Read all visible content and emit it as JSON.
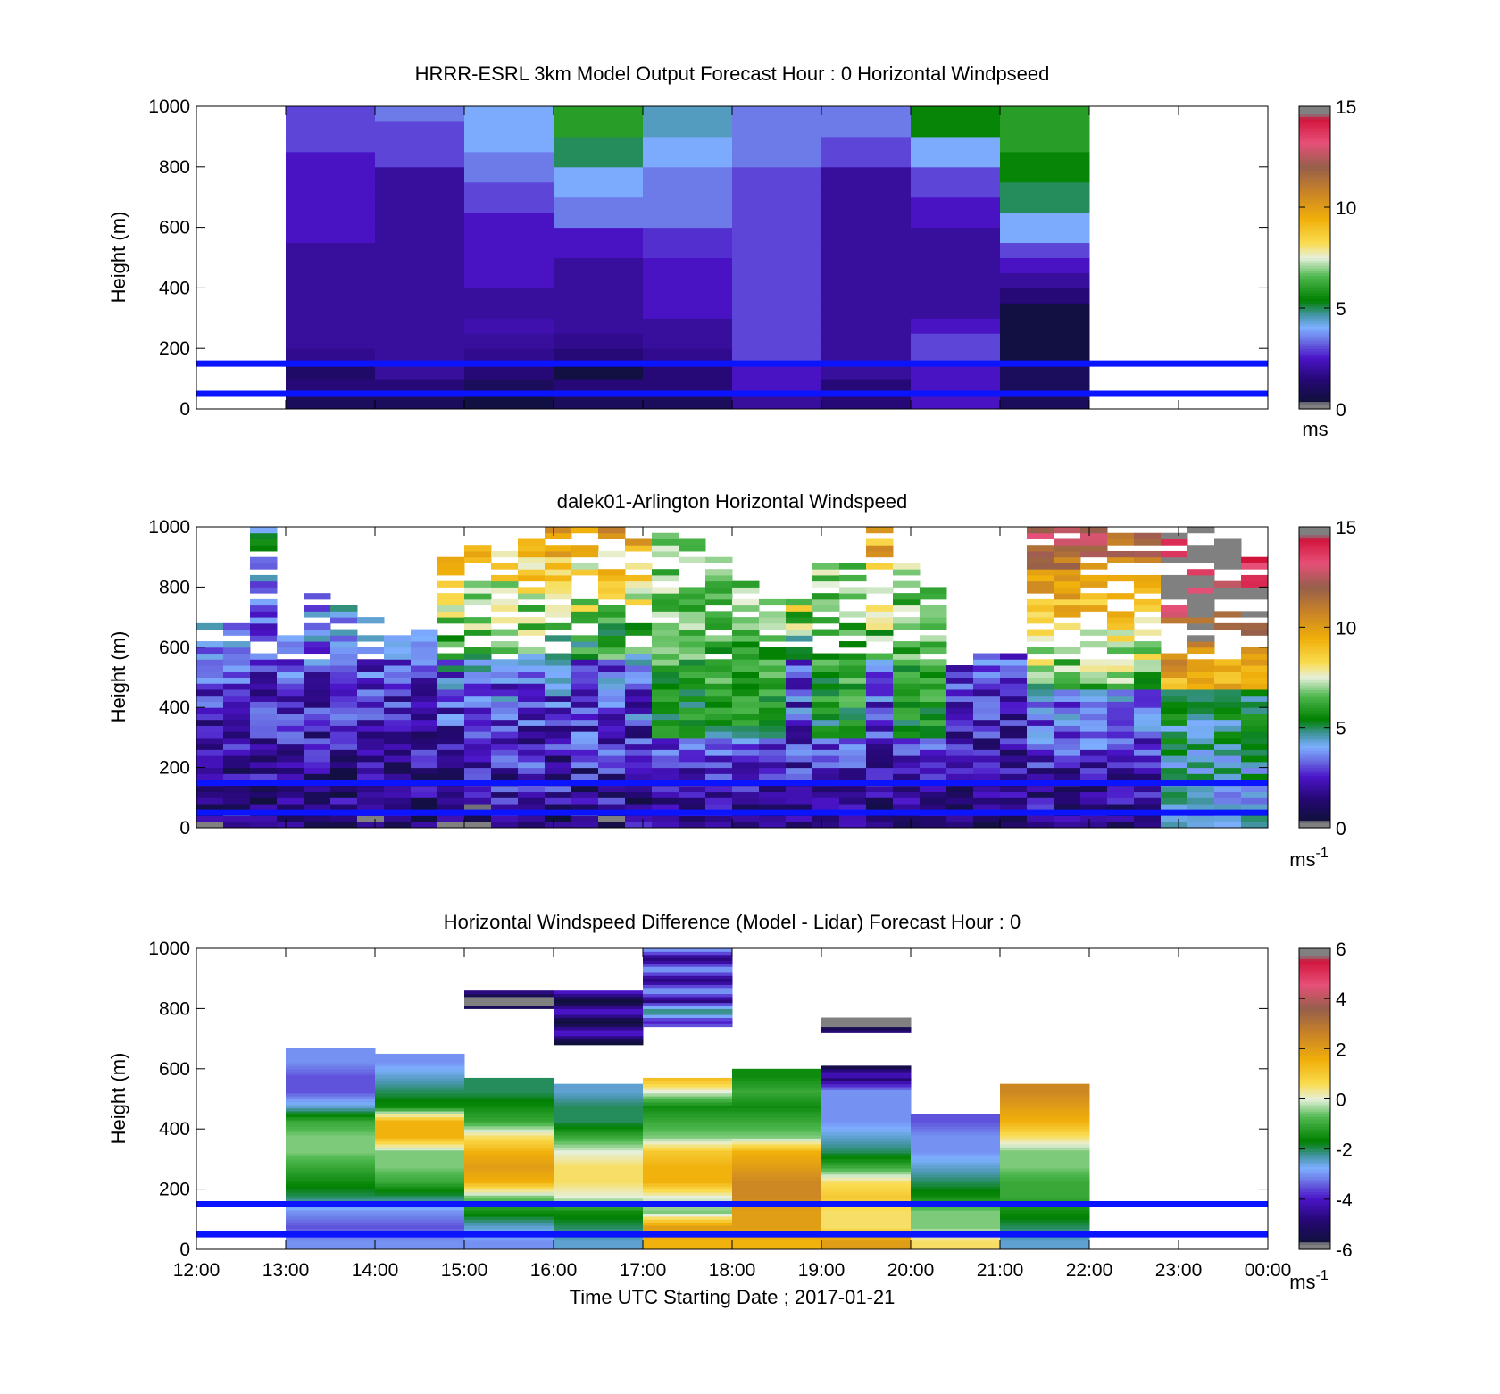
{
  "figure": {
    "xlabel": "Time UTC  Starting Date ; 2017-01-21"
  },
  "x_ticks": [
    "12:00",
    "13:00",
    "14:00",
    "15:00",
    "16:00",
    "17:00",
    "18:00",
    "19:00",
    "20:00",
    "21:00",
    "22:00",
    "23:00",
    "00:00"
  ],
  "reference_lines_m": [
    150,
    50
  ],
  "chart_data": [
    {
      "type": "heatmap",
      "title": "HRRR-ESRL 3km Model Output   Forecast Hour : 0 Horizontal Windpseed",
      "ylabel": "Height (m)",
      "yticks": [
        "0",
        "200",
        "400",
        "600",
        "800",
        "1000"
      ],
      "ylim": [
        0,
        1000
      ],
      "x_range_hours": [
        12,
        24
      ],
      "colorbar": {
        "min": 0,
        "max": 15,
        "ticks": [
          "0",
          "5",
          "10",
          "15"
        ],
        "unit": "ms"
      },
      "columns_hours": [
        13,
        14,
        15,
        16,
        17,
        18,
        19,
        20,
        21
      ],
      "levels_m": [
        25,
        75,
        125,
        175,
        225,
        275,
        325,
        375,
        425,
        475,
        525,
        575,
        625,
        675,
        725,
        775,
        825,
        875,
        925,
        975
      ],
      "speed_ms": [
        [
          1.0,
          1.5,
          1.2,
          1.8,
          2.0,
          2.0,
          2.0,
          2.0,
          2.0,
          2.0,
          2.0,
          2.5,
          2.5,
          2.5,
          2.5,
          2.5,
          2.5,
          3.0,
          3.0,
          3.0
        ],
        [
          1.0,
          1.5,
          2.0,
          2.0,
          2.0,
          2.0,
          2.0,
          2.0,
          2.0,
          2.0,
          2.0,
          2.0,
          2.0,
          2.0,
          2.0,
          2.0,
          3.0,
          3.0,
          3.0,
          3.5
        ],
        [
          0.5,
          1.0,
          1.5,
          1.8,
          2.0,
          2.2,
          2.0,
          2.0,
          2.5,
          2.5,
          2.5,
          2.5,
          2.5,
          3.0,
          3.0,
          3.5,
          3.5,
          4.0,
          4.0,
          4.0
        ],
        [
          1.0,
          1.5,
          0.5,
          1.5,
          1.8,
          2.0,
          2.0,
          2.0,
          2.0,
          2.0,
          2.5,
          2.5,
          3.5,
          3.5,
          4.0,
          4.0,
          5.0,
          5.0,
          6.0,
          6.0
        ],
        [
          1.0,
          1.5,
          1.5,
          1.8,
          2.0,
          2.0,
          2.5,
          2.5,
          2.5,
          2.5,
          2.8,
          2.8,
          3.5,
          3.5,
          3.5,
          3.5,
          4.0,
          4.0,
          4.5,
          4.5
        ],
        [
          2.0,
          2.5,
          2.5,
          3.0,
          3.0,
          3.0,
          3.0,
          3.0,
          3.0,
          3.0,
          3.0,
          3.0,
          3.0,
          3.0,
          3.0,
          3.0,
          3.5,
          3.5,
          3.5,
          3.5
        ],
        [
          1.5,
          1.5,
          2.0,
          2.0,
          2.0,
          2.0,
          2.0,
          2.0,
          2.0,
          2.0,
          2.0,
          2.0,
          2.0,
          2.0,
          2.0,
          2.0,
          3.0,
          3.0,
          3.5,
          3.5
        ],
        [
          2.5,
          2.5,
          2.5,
          3.0,
          3.0,
          2.5,
          2.0,
          2.0,
          2.0,
          2.0,
          2.0,
          2.0,
          2.5,
          2.5,
          3.0,
          3.0,
          4.0,
          4.0,
          5.5,
          5.5
        ],
        [
          1.0,
          1.0,
          1.0,
          0.5,
          0.5,
          0.5,
          0.5,
          1.5,
          2.0,
          2.5,
          3.0,
          4.0,
          4.0,
          5.0,
          5.0,
          5.5,
          5.5,
          6.0,
          6.0,
          6.0
        ]
      ]
    },
    {
      "type": "heatmap",
      "title": "dalek01-Arlington  Horizontal Windspeed",
      "ylabel": "Height (m)",
      "yticks": [
        "0",
        "200",
        "400",
        "600",
        "800",
        "1000"
      ],
      "ylim": [
        0,
        1000
      ],
      "x_range_hours": [
        12,
        24
      ],
      "colorbar": {
        "min": 0,
        "max": 15,
        "ticks": [
          "0",
          "5",
          "10",
          "15"
        ],
        "unit": "ms",
        "unit_exp": "-1"
      },
      "profiles": [
        {
          "t": 12.0,
          "top": 670,
          "kind": "low"
        },
        {
          "t": 12.3,
          "top": 680,
          "kind": "low"
        },
        {
          "t": 12.6,
          "top": 1000,
          "kind": "low"
        },
        {
          "t": 12.9,
          "top": 660,
          "kind": "low"
        },
        {
          "t": 13.2,
          "top": 800,
          "kind": "low"
        },
        {
          "t": 13.5,
          "top": 750,
          "kind": "low"
        },
        {
          "t": 13.8,
          "top": 720,
          "kind": "low"
        },
        {
          "t": 14.1,
          "top": 640,
          "kind": "low"
        },
        {
          "t": 14.4,
          "top": 680,
          "kind": "low"
        },
        {
          "t": 14.7,
          "top": 900,
          "kind": "mixed"
        },
        {
          "t": 15.0,
          "top": 950,
          "kind": "mixed"
        },
        {
          "t": 15.3,
          "top": 920,
          "kind": "mixed"
        },
        {
          "t": 15.6,
          "top": 950,
          "kind": "mixed"
        },
        {
          "t": 15.9,
          "top": 1000,
          "kind": "mixed"
        },
        {
          "t": 16.2,
          "top": 1000,
          "kind": "mixed"
        },
        {
          "t": 16.5,
          "top": 1000,
          "kind": "mixed"
        },
        {
          "t": 16.8,
          "top": 1000,
          "kind": "mixed"
        },
        {
          "t": 17.1,
          "top": 1000,
          "kind": "green"
        },
        {
          "t": 17.4,
          "top": 960,
          "kind": "green"
        },
        {
          "t": 17.7,
          "top": 900,
          "kind": "green"
        },
        {
          "t": 18.0,
          "top": 820,
          "kind": "green"
        },
        {
          "t": 18.3,
          "top": 780,
          "kind": "green"
        },
        {
          "t": 18.6,
          "top": 760,
          "kind": "mixed"
        },
        {
          "t": 18.9,
          "top": 880,
          "kind": "green"
        },
        {
          "t": 19.2,
          "top": 900,
          "kind": "green"
        },
        {
          "t": 19.5,
          "top": 1000,
          "kind": "mixed"
        },
        {
          "t": 19.8,
          "top": 880,
          "kind": "green"
        },
        {
          "t": 20.1,
          "top": 800,
          "kind": "green"
        },
        {
          "t": 20.4,
          "top": 540,
          "kind": "low"
        },
        {
          "t": 20.7,
          "top": 580,
          "kind": "low"
        },
        {
          "t": 21.0,
          "top": 600,
          "kind": "low"
        },
        {
          "t": 21.3,
          "top": 1000,
          "kind": "high"
        },
        {
          "t": 21.6,
          "top": 1000,
          "kind": "high"
        },
        {
          "t": 21.9,
          "top": 1000,
          "kind": "high"
        },
        {
          "t": 22.2,
          "top": 1000,
          "kind": "high"
        },
        {
          "t": 22.5,
          "top": 1000,
          "kind": "high"
        },
        {
          "t": 22.8,
          "top": 1000,
          "kind": "vhigh"
        },
        {
          "t": 23.1,
          "top": 1000,
          "kind": "vhigh"
        },
        {
          "t": 23.4,
          "top": 980,
          "kind": "vhigh"
        },
        {
          "t": 23.7,
          "top": 900,
          "kind": "vhigh"
        }
      ]
    },
    {
      "type": "heatmap",
      "title": "Horizontal Windspeed Difference (Model - Lidar) Forecast Hour : 0",
      "ylabel": "Height (m)",
      "yticks": [
        "0",
        "200",
        "400",
        "600",
        "800",
        "1000"
      ],
      "ylim": [
        0,
        1000
      ],
      "x_range_hours": [
        12,
        24
      ],
      "colorbar": {
        "min": -6,
        "max": 6,
        "ticks": [
          "-6",
          "-4",
          "-2",
          "0",
          "2",
          "4",
          "6"
        ],
        "unit": "ms",
        "unit_exp": "-1"
      },
      "columns_hours": [
        13,
        14,
        15,
        16,
        17,
        18,
        19,
        20,
        21
      ],
      "column_top_m": [
        670,
        650,
        600,
        550,
        570,
        600,
        610,
        450,
        550
      ],
      "levels_m": [
        25,
        75,
        125,
        175,
        225,
        275,
        325,
        375,
        425,
        475,
        525,
        575,
        625
      ],
      "diff_ms": [
        [
          -3.0,
          -3.5,
          -3.0,
          -2.0,
          -1.5,
          -1.0,
          -0.5,
          -0.5,
          -1.0,
          -2.5,
          -3.5,
          -3.5,
          -3.0
        ],
        [
          -3.0,
          -3.5,
          -3.0,
          -2.0,
          -1.0,
          -0.5,
          -0.5,
          1.5,
          1.5,
          -1.5,
          -2.0,
          -2.5,
          -3.0
        ],
        [
          -3.0,
          -2.5,
          -1.5,
          -0.5,
          1.5,
          2.0,
          1.5,
          0.5,
          -1.0,
          -1.5,
          -2.0,
          null,
          null
        ],
        [
          -2.5,
          -2.0,
          -1.5,
          0.0,
          0.5,
          0.5,
          0.0,
          -1.0,
          -2.0,
          -2.0,
          -2.5,
          null,
          null
        ],
        [
          1.5,
          2.0,
          -0.5,
          0.0,
          1.5,
          1.5,
          1.0,
          -0.5,
          -1.0,
          -1.5,
          0.0,
          1.5,
          null
        ],
        [
          1.5,
          2.0,
          2.0,
          2.5,
          2.5,
          2.0,
          1.5,
          -0.5,
          -1.0,
          -1.5,
          -1.0,
          -1.5,
          null
        ],
        [
          2.0,
          0.5,
          0.5,
          1.0,
          0.5,
          -1.0,
          -2.0,
          -2.5,
          -3.0,
          -3.0,
          -3.0,
          -5.0,
          null
        ],
        [
          0.5,
          -0.5,
          -0.5,
          -1.5,
          -2.0,
          -2.5,
          -3.0,
          -3.0,
          -3.5,
          -3.5,
          null,
          null,
          null
        ],
        [
          -2.5,
          -2.0,
          -1.5,
          -1.0,
          -1.0,
          -0.5,
          -0.5,
          0.5,
          1.5,
          2.0,
          2.5,
          null,
          null
        ]
      ],
      "upper_blocks": [
        {
          "t0": 15,
          "t1": 16,
          "m0": 800,
          "m1": 860,
          "v": -5.5
        },
        {
          "t0": 16,
          "t1": 17,
          "m0": 680,
          "m1": 860,
          "v": -4.8
        },
        {
          "t0": 17,
          "t1": 18,
          "m0": 740,
          "m1": 820,
          "v": -3.0
        },
        {
          "t0": 17,
          "t1": 18,
          "m0": 820,
          "m1": 1000,
          "v": -3.8
        },
        {
          "t0": 19,
          "t1": 20,
          "m0": 720,
          "m1": 770,
          "v": -5.6
        },
        {
          "t0": 19,
          "t1": 20,
          "m0": 560,
          "m1": 610,
          "v": -5.0
        }
      ]
    }
  ]
}
